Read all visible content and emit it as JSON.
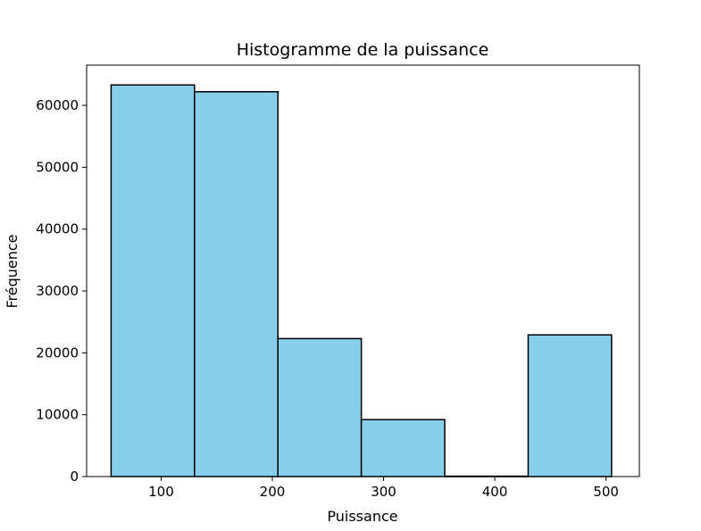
{
  "chart_data": {
    "type": "bar",
    "subtype": "histogram",
    "title": "Histogramme de la puissance",
    "xlabel": "Puissance",
    "ylabel": "Fréquence",
    "xlim": [
      33,
      530
    ],
    "ylim": [
      0,
      66500
    ],
    "xticks": [
      100,
      200,
      300,
      400,
      500
    ],
    "yticks": [
      0,
      10000,
      20000,
      30000,
      40000,
      50000,
      60000
    ],
    "bins": [
      {
        "start": 55,
        "end": 130,
        "value": 63300
      },
      {
        "start": 130,
        "end": 205,
        "value": 62200
      },
      {
        "start": 205,
        "end": 280,
        "value": 22300
      },
      {
        "start": 280,
        "end": 355,
        "value": 9200
      },
      {
        "start": 355,
        "end": 430,
        "value": 60
      },
      {
        "start": 430,
        "end": 505,
        "value": 22900
      }
    ],
    "bar_color": "#87ceeb",
    "edge_color": "#000000",
    "grid": false,
    "legend": "none"
  }
}
